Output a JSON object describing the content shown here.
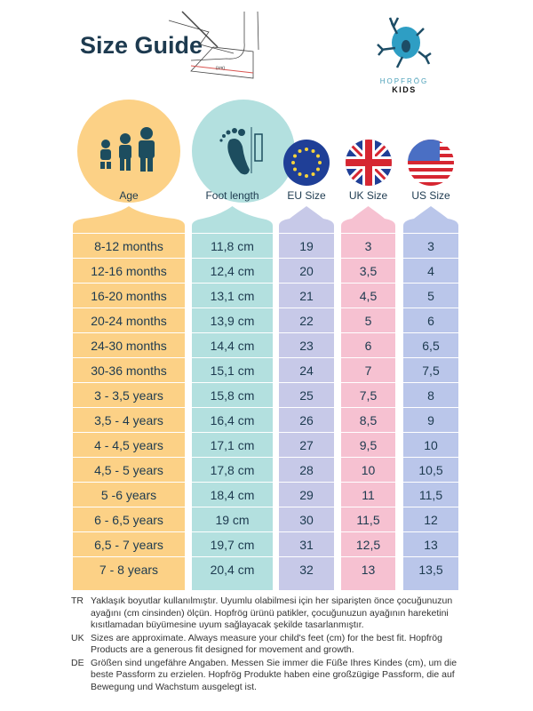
{
  "title": "Size Guide",
  "sketch_label": "(cm)",
  "logo": {
    "line1": "HOPFRÖG",
    "line2": "KIDS"
  },
  "columns": [
    {
      "key": "age",
      "label": "Age",
      "color": "#fcd186",
      "icon": "family-icon"
    },
    {
      "key": "foot",
      "label": "Foot length",
      "color": "#b3e0df",
      "icon": "footprint-ruler-icon"
    },
    {
      "key": "eu",
      "label": "EU Size",
      "color": "#c7c9e8",
      "icon": "eu-flag-icon"
    },
    {
      "key": "uk",
      "label": "UK Size",
      "color": "#f6c1d1",
      "icon": "uk-flag-icon"
    },
    {
      "key": "us",
      "label": "US Size",
      "color": "#bac6ea",
      "icon": "us-flag-icon"
    }
  ],
  "rows": [
    [
      "8-12 months",
      "11,8 cm",
      "19",
      "3",
      "3"
    ],
    [
      "12-16 months",
      "12,4 cm",
      "20",
      "3,5",
      "4"
    ],
    [
      "16-20 months",
      "13,1 cm",
      "21",
      "4,5",
      "5"
    ],
    [
      "20-24 months",
      "13,9 cm",
      "22",
      "5",
      "6"
    ],
    [
      "24-30 months",
      "14,4 cm",
      "23",
      "6",
      "6,5"
    ],
    [
      "30-36 months",
      "15,1 cm",
      "24",
      "7",
      "7,5"
    ],
    [
      "3 - 3,5 years",
      "15,8 cm",
      "25",
      "7,5",
      "8"
    ],
    [
      "3,5 - 4 years",
      "16,4 cm",
      "26",
      "8,5",
      "9"
    ],
    [
      "4 - 4,5 years",
      "17,1 cm",
      "27",
      "9,5",
      "10"
    ],
    [
      "4,5 - 5 years",
      "17,8 cm",
      "28",
      "10",
      "10,5"
    ],
    [
      "5 -6 years",
      "18,4 cm",
      "29",
      "11",
      "11,5"
    ],
    [
      "6 - 6,5 years",
      "19 cm",
      "30",
      "11,5",
      "12"
    ],
    [
      "6,5 - 7 years",
      "19,7 cm",
      "31",
      "12,5",
      "13"
    ],
    [
      "7 - 8 years",
      "20,4 cm",
      "32",
      "13",
      "13,5"
    ]
  ],
  "notes": [
    {
      "lang": "TR",
      "text": "Yaklaşık boyutlar kullanılmıştır. Uyumlu olabilmesi için her siparişten önce çocuğunuzun ayağını (cm cinsinden) ölçün. Hopfrög ürünü patikler, çocuğunuzun ayağının hareketini kısıtlamadan büyümesine uyum sağlayacak şekilde tasarlanmıştır."
    },
    {
      "lang": "UK",
      "text": "Sizes are approximate. Always measure your child's feet (cm) for the best fit. Hopfrög Products are a generous fit designed for movement and growth."
    },
    {
      "lang": "DE",
      "text": "Größen sind ungefähre Angaben. Messen Sie immer die Füße Ihres Kindes (cm), um die beste Passform zu erzielen. Hopfrög Produkte haben eine großzügige Passform, die auf Bewegung und Wachstum ausgelegt ist."
    }
  ]
}
